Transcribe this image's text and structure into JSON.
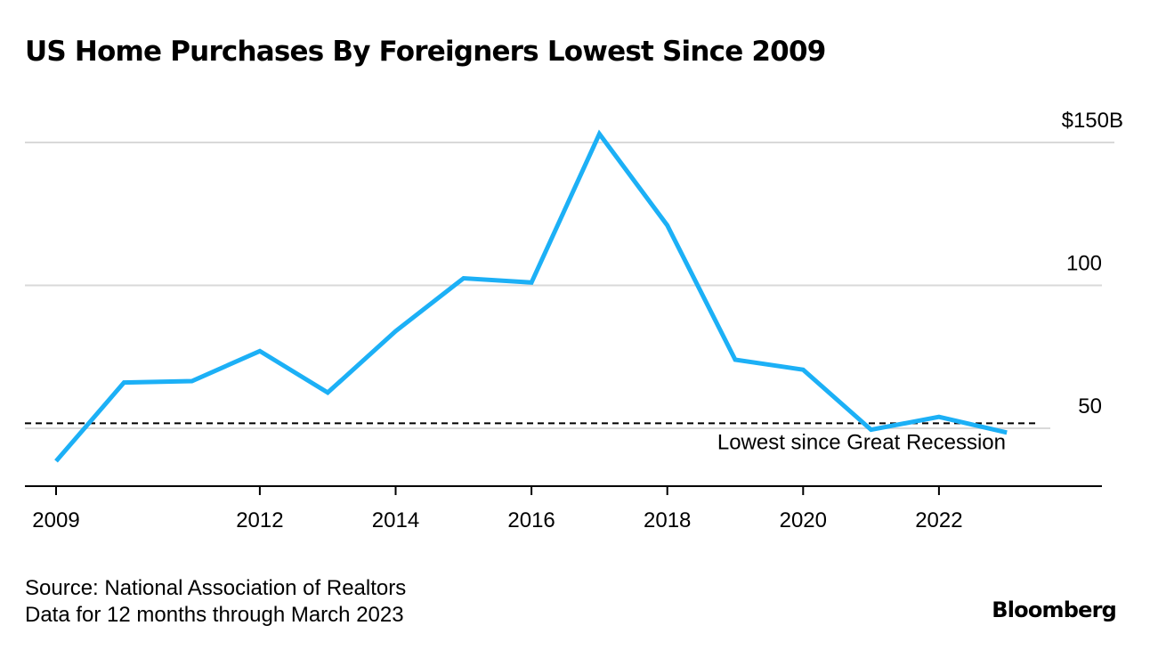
{
  "chart_data": {
    "type": "line",
    "title": "US Home Purchases By Foreigners Lowest Since 2009",
    "x": [
      2009,
      2010,
      2011,
      2012,
      2013,
      2014,
      2015,
      2016,
      2017,
      2018,
      2019,
      2020,
      2021,
      2022,
      2023
    ],
    "series": [
      {
        "name": "US home purchases by foreigners",
        "values": [
          38.5,
          66,
          66.5,
          77,
          62.5,
          84,
          102.5,
          101,
          153,
          121,
          74,
          70.5,
          49.5,
          54,
          48.5
        ],
        "color": "#1cb0f6"
      }
    ],
    "xlim": [
      2008.55,
      2023.9
    ],
    "ylim": [
      30,
      160
    ],
    "y_ticks": [
      {
        "value": 150,
        "label": "$150B"
      },
      {
        "value": 100,
        "label": "100"
      },
      {
        "value": 50,
        "label": "50"
      }
    ],
    "x_ticks": [
      {
        "value": 2009,
        "label": "2009"
      },
      {
        "value": 2012,
        "label": "2012"
      },
      {
        "value": 2014,
        "label": "2014"
      },
      {
        "value": 2016,
        "label": "2016"
      },
      {
        "value": 2018,
        "label": "2018"
      },
      {
        "value": 2020,
        "label": "2020"
      },
      {
        "value": 2022,
        "label": "2022"
      }
    ],
    "reference_line": {
      "value": 48.5,
      "label": "Lowest since Great Recession",
      "style": "dashed"
    },
    "grid": true
  },
  "footer": {
    "source": "Source: National Association of Realtors",
    "note": "Data for 12 months through March 2023"
  },
  "brand": "Bloomberg"
}
